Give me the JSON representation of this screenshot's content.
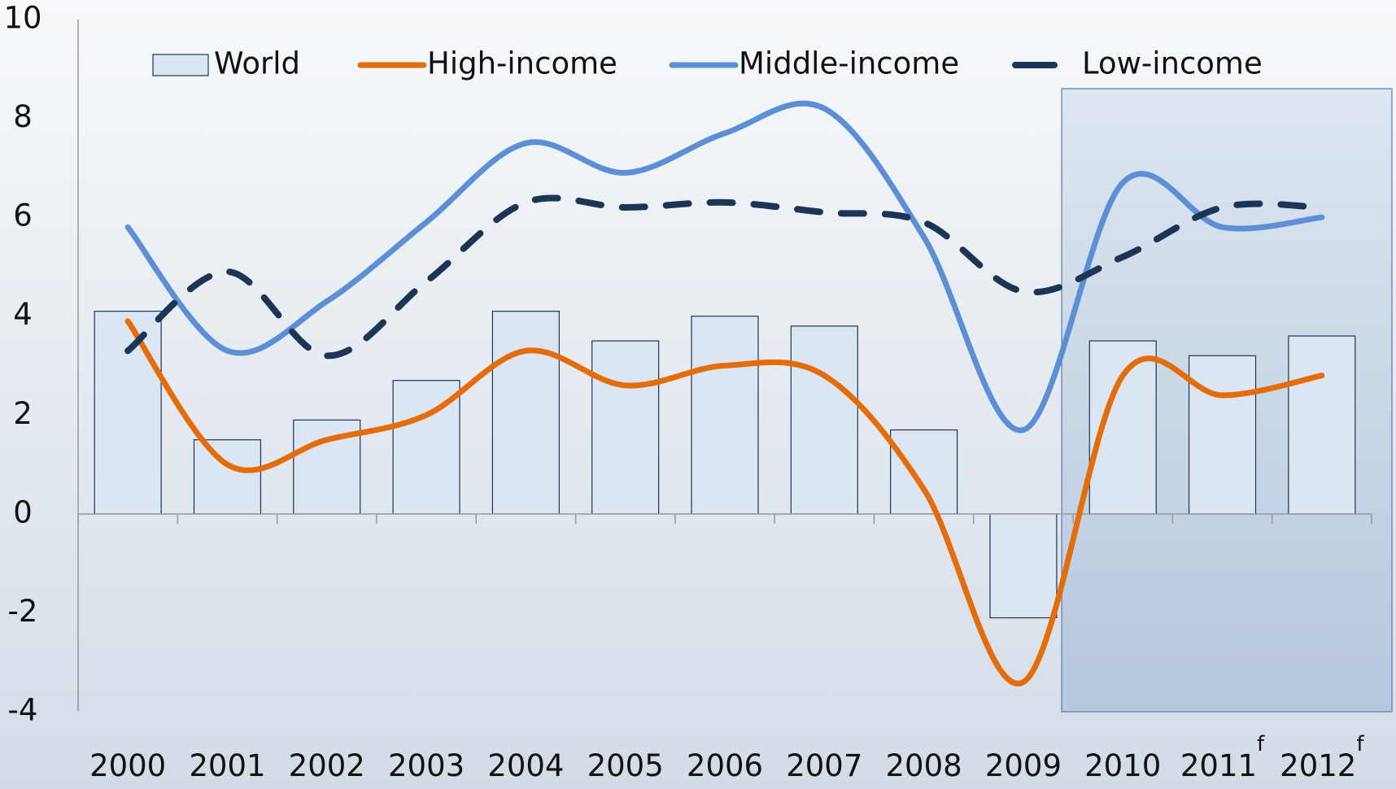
{
  "chart_data": {
    "type": "bar_line",
    "categories": [
      "2000",
      "2001",
      "2002",
      "2003",
      "2004",
      "2005",
      "2006",
      "2007",
      "2008",
      "2009",
      "2010",
      "2011",
      "2012"
    ],
    "category_superscripts": {
      "11": "f",
      "12": "f"
    },
    "forecast_shade_start": "2010",
    "ylim": [
      -4,
      10
    ],
    "yticks": [
      -4,
      -2,
      0,
      2,
      4,
      6,
      8,
      10
    ],
    "legend": "top",
    "series": [
      {
        "name": "World",
        "kind": "bar",
        "color": "#dce6f2",
        "values": [
          4.1,
          1.5,
          1.9,
          2.7,
          4.1,
          3.5,
          4.0,
          3.8,
          1.7,
          -2.1,
          3.5,
          3.2,
          3.6
        ]
      },
      {
        "name": "High-income",
        "kind": "line",
        "color": "#e46c0a",
        "values": [
          3.9,
          1.0,
          1.5,
          2.0,
          3.3,
          2.6,
          3.0,
          2.8,
          0.5,
          -3.4,
          2.8,
          2.4,
          2.8
        ]
      },
      {
        "name": "Middle-income",
        "kind": "line",
        "color": "#5b8fd6",
        "values": [
          5.8,
          3.3,
          4.3,
          5.9,
          7.5,
          6.9,
          7.7,
          8.2,
          5.6,
          1.7,
          6.7,
          5.8,
          6.0
        ]
      },
      {
        "name": "Low-income",
        "kind": "dashed",
        "color": "#1b3556",
        "values": [
          3.3,
          4.9,
          3.2,
          4.7,
          6.3,
          6.2,
          6.3,
          6.1,
          5.9,
          4.5,
          5.2,
          6.2,
          6.2
        ]
      }
    ]
  }
}
